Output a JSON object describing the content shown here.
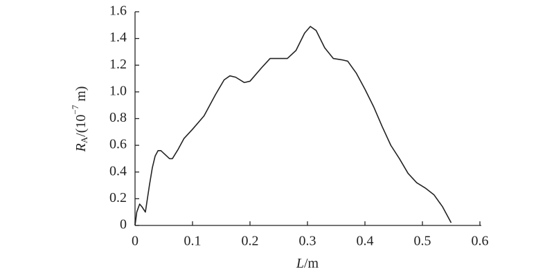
{
  "chart_data": {
    "type": "line",
    "xlabel": {
      "symbol": "L",
      "suffix": "/m"
    },
    "ylabel": {
      "symbol": "R",
      "subscript": "A",
      "prefix": "/(10",
      "exponent": "−7",
      "suffix": " m)"
    },
    "color": "#222222",
    "x": [
      0,
      0.003,
      0.008,
      0.012,
      0.018,
      0.025,
      0.03,
      0.035,
      0.04,
      0.045,
      0.05,
      0.06,
      0.065,
      0.075,
      0.085,
      0.1,
      0.12,
      0.14,
      0.155,
      0.165,
      0.175,
      0.19,
      0.2,
      0.22,
      0.235,
      0.25,
      0.265,
      0.28,
      0.295,
      0.305,
      0.315,
      0.33,
      0.345,
      0.36,
      0.37,
      0.385,
      0.4,
      0.415,
      0.43,
      0.445,
      0.46,
      0.475,
      0.49,
      0.505,
      0.52,
      0.535,
      0.55
    ],
    "values": [
      0,
      0.1,
      0.16,
      0.14,
      0.1,
      0.3,
      0.43,
      0.52,
      0.56,
      0.56,
      0.54,
      0.5,
      0.5,
      0.57,
      0.65,
      0.72,
      0.82,
      0.98,
      1.09,
      1.12,
      1.11,
      1.07,
      1.08,
      1.18,
      1.25,
      1.25,
      1.25,
      1.31,
      1.44,
      1.49,
      1.46,
      1.33,
      1.25,
      1.24,
      1.23,
      1.14,
      1.02,
      0.89,
      0.74,
      0.6,
      0.5,
      0.39,
      0.32,
      0.28,
      0.23,
      0.14,
      0.02
    ],
    "xlim": [
      0,
      0.6
    ],
    "xticks": [
      0,
      0.1,
      0.2,
      0.3,
      0.4,
      0.5,
      0.6
    ],
    "ylim": [
      0,
      1.6
    ],
    "yticks": [
      0,
      0.2,
      0.4,
      0.6,
      0.8,
      {
        "value": 1,
        "label": "1.0"
      },
      1.2,
      1.4,
      1.6
    ]
  }
}
